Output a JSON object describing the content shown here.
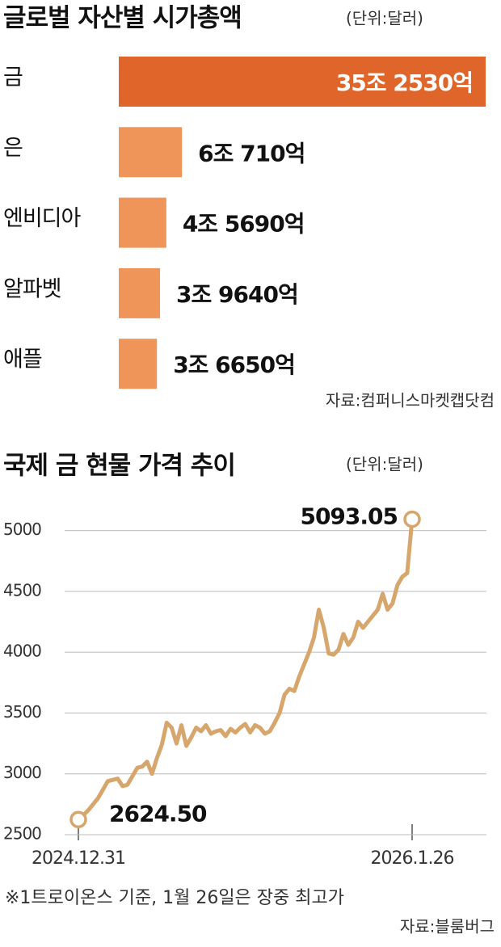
{
  "chart_data": [
    {
      "type": "hbar",
      "title": "글로벌 자산별 시가총액",
      "subtitle": "(단위:달러)",
      "source": "자료:컴퍼니스마켓캡닷컴",
      "categories": [
        "금",
        "은",
        "엔비디아",
        "알파벳",
        "애플"
      ],
      "values": [
        352530,
        60710,
        45690,
        39640,
        36650
      ],
      "value_labels": [
        "35조 2530억",
        "6조 710억",
        "4조 5690억",
        "3조 9640억",
        "3조 6650억"
      ],
      "colors": [
        "#e0652a",
        "#f0955a",
        "#f0955a",
        "#f0955a",
        "#f0955a"
      ]
    },
    {
      "type": "line",
      "title": "국제 금 현물 가격 추이",
      "subtitle": "(단위:달러)",
      "note": "※1트로이온스 기준, 1월 26일은 장중 최고가",
      "source": "자료:블룸버그",
      "categories": [
        "2024.12.31",
        null,
        null,
        null,
        null,
        null,
        null,
        null,
        null,
        null,
        null,
        null,
        null,
        null,
        null,
        null,
        null,
        null,
        null,
        null,
        null,
        null,
        null,
        null,
        null,
        null,
        null,
        null,
        null,
        null,
        null,
        null,
        null,
        null,
        null,
        null,
        null,
        null,
        null,
        null,
        null,
        null,
        null,
        null,
        null,
        null,
        null,
        null,
        null,
        null,
        null,
        null,
        null,
        null,
        null,
        null,
        null,
        null,
        null,
        null,
        null,
        null,
        null,
        null,
        null,
        null,
        null,
        null,
        "2026.1.26"
      ],
      "values": [
        2624.5,
        2660,
        2700,
        2750,
        2800,
        2870,
        2940,
        2950,
        2960,
        2900,
        2910,
        2980,
        3050,
        3060,
        3100,
        3000,
        3130,
        3240,
        3420,
        3380,
        3250,
        3400,
        3230,
        3300,
        3380,
        3350,
        3400,
        3330,
        3350,
        3360,
        3310,
        3370,
        3340,
        3380,
        3410,
        3340,
        3400,
        3380,
        3330,
        3350,
        3420,
        3500,
        3650,
        3700,
        3680,
        3800,
        3900,
        4000,
        4120,
        4350,
        4200,
        3990,
        3980,
        4020,
        4150,
        4060,
        4120,
        4250,
        4200,
        4250,
        4300,
        4350,
        4480,
        4350,
        4400,
        4550,
        4620,
        4650,
        5093.05
      ],
      "value_labels": [
        "2624.50",
        null,
        null,
        null,
        null,
        null,
        null,
        null,
        null,
        null,
        null,
        null,
        null,
        null,
        null,
        null,
        null,
        null,
        null,
        null,
        null,
        null,
        null,
        null,
        null,
        null,
        null,
        null,
        null,
        null,
        null,
        null,
        null,
        null,
        null,
        null,
        null,
        null,
        null,
        null,
        null,
        null,
        null,
        null,
        null,
        null,
        null,
        null,
        null,
        null,
        null,
        null,
        null,
        null,
        null,
        null,
        null,
        null,
        null,
        null,
        null,
        null,
        null,
        null,
        null,
        null,
        null,
        null,
        "5093.05"
      ],
      "color": "#d6a66c",
      "ylim": [
        2500,
        5150
      ],
      "yticks": [
        2500,
        3000,
        3500,
        4000,
        4500,
        5000
      ],
      "grid": true
    }
  ]
}
